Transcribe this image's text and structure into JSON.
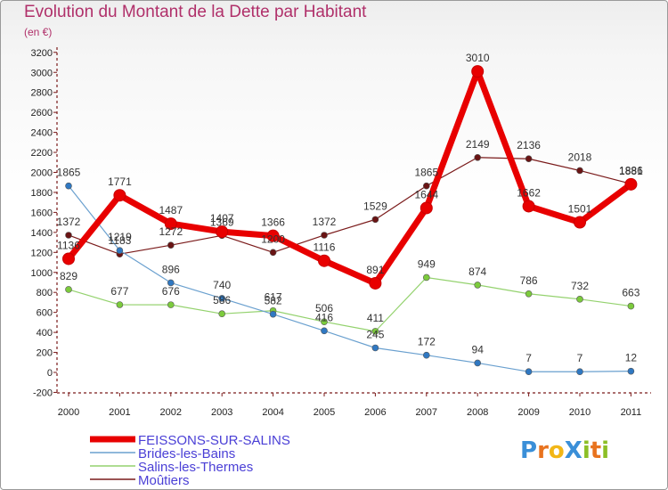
{
  "title": "Evolution du Montant de la Dette par Habitant",
  "subtitle": "(en €)",
  "logo": {
    "text": "ProXiti",
    "letter_colors": [
      "#3a8fd8",
      "#e8731f",
      "#f2b616",
      "#3a8fd8",
      "#8cbf26",
      "#e8731f",
      "#8cbf26"
    ]
  },
  "chart_data": {
    "type": "line",
    "x": [
      "2000",
      "2001",
      "2002",
      "2003",
      "2004",
      "2005",
      "2006",
      "2007",
      "2008",
      "2009",
      "2010",
      "2011"
    ],
    "ylim": [
      -200,
      3200
    ],
    "yticks": [
      -200,
      0,
      200,
      400,
      600,
      800,
      1000,
      1200,
      1400,
      1600,
      1800,
      2000,
      2200,
      2400,
      2600,
      2800,
      3000,
      3200
    ],
    "grid": false,
    "legend_placement": "bottom-left",
    "series": [
      {
        "name": "Moûtiers",
        "color": "#7a1a1a",
        "marker": "#6a1414",
        "values": [
          1372,
          1183,
          1272,
          1369,
          1200,
          1372,
          1529,
          1865,
          2149,
          2136,
          2018,
          1886
        ]
      },
      {
        "name": "Salins-les-Thermes",
        "color": "#94d26e",
        "marker": "#7ccb3c",
        "values": [
          829,
          677,
          676,
          586,
          617,
          506,
          411,
          949,
          874,
          786,
          732,
          663
        ]
      },
      {
        "name": "Brides-les-Bains",
        "color": "#6aa0cf",
        "marker": "#2f78c2",
        "values": [
          1865,
          1219,
          896,
          740,
          582,
          416,
          245,
          172,
          94,
          7,
          7,
          12
        ]
      },
      {
        "name": "FEISSONS-SUR-SALINS",
        "color": "#e80000",
        "marker": "#e80000",
        "values": [
          1136,
          1771,
          1487,
          1407,
          1366,
          1116,
          891,
          1644,
          3010,
          1662,
          1501,
          1881
        ]
      }
    ]
  }
}
